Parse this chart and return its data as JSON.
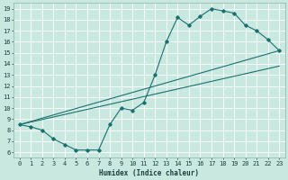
{
  "xlabel": "Humidex (Indice chaleur)",
  "bg_color": "#c8e8e0",
  "line_color": "#1a7070",
  "grid_color": "#ffffff",
  "xlim": [
    -0.5,
    23.5
  ],
  "ylim": [
    5.5,
    19.5
  ],
  "xticks": [
    0,
    1,
    2,
    3,
    4,
    5,
    6,
    7,
    8,
    9,
    10,
    11,
    12,
    13,
    14,
    15,
    16,
    17,
    18,
    19,
    20,
    21,
    22,
    23
  ],
  "yticks": [
    6,
    7,
    8,
    9,
    10,
    11,
    12,
    13,
    14,
    15,
    16,
    17,
    18,
    19
  ],
  "main_line": {
    "x": [
      0,
      1,
      2,
      3,
      4,
      5,
      6,
      7,
      8,
      9,
      10,
      11,
      12,
      13,
      14,
      15,
      16,
      17,
      18,
      19,
      20,
      21,
      22,
      23
    ],
    "y": [
      8.5,
      8.3,
      8.0,
      7.2,
      6.7,
      6.2,
      6.2,
      6.2,
      8.5,
      10.0,
      9.8,
      10.5,
      13.0,
      16.0,
      18.2,
      17.5,
      18.3,
      19.0,
      18.8,
      18.6,
      17.5,
      17.0,
      16.2,
      15.2
    ]
  },
  "diag_line1": {
    "x": [
      0,
      23
    ],
    "y": [
      8.5,
      15.2
    ]
  },
  "diag_line2": {
    "x": [
      0,
      23
    ],
    "y": [
      8.5,
      13.8
    ]
  },
  "xlabel_fontsize": 5.5,
  "tick_fontsize": 5.0
}
